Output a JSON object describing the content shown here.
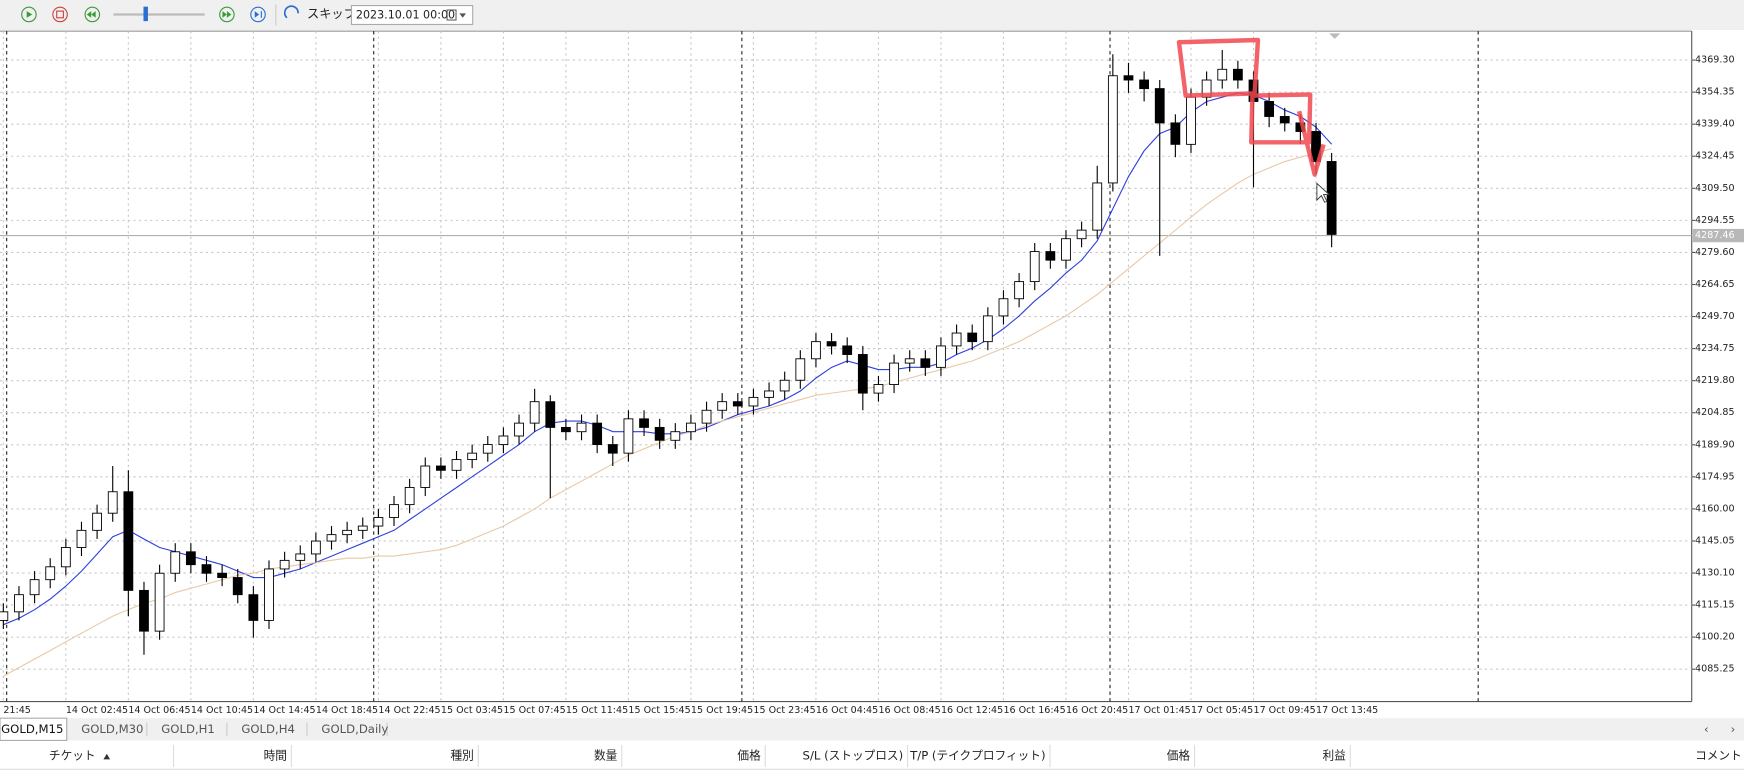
{
  "toolbar": {
    "skip": "スキップ",
    "date": "2023.10.01 00:00"
  },
  "chart_data": {
    "type": "candlestick",
    "categories": [
      "21:45",
      null,
      null,
      null,
      "14 Oct 02:45",
      null,
      null,
      null,
      "14 Oct 06:45",
      null,
      null,
      null,
      "14 Oct 10:45",
      null,
      null,
      null,
      "14 Oct 14:45",
      null,
      null,
      null,
      "14 Oct 18:45",
      null,
      null,
      null,
      "14 Oct 22:45",
      null,
      null,
      null,
      "15 Oct 03:45",
      null,
      null,
      null,
      "15 Oct 07:45",
      null,
      null,
      null,
      "15 Oct 11:45",
      null,
      null,
      null,
      "15 Oct 15:45",
      null,
      null,
      null,
      "15 Oct 19:45",
      null,
      null,
      null,
      "15 Oct 23:45",
      null,
      null,
      null,
      "16 Oct 04:45",
      null,
      null,
      null,
      "16 Oct 08:45",
      null,
      null,
      null,
      "16 Oct 12:45",
      null,
      null,
      null,
      "16 Oct 16:45",
      null,
      null,
      null,
      "16 Oct 20:45",
      null,
      null,
      null,
      "17 Oct 01:45",
      null,
      null,
      null,
      "17 Oct 05:45",
      null,
      null,
      null,
      "17 Oct 09:45",
      null,
      null,
      null,
      "17 Oct 13:45",
      null
    ],
    "open": [
      4108,
      4112,
      4120,
      4127,
      4133,
      4142,
      4150,
      4158,
      4168,
      4122,
      4103,
      4130,
      4140,
      4134,
      4130,
      4128,
      4120,
      4108,
      4132,
      4136,
      4139,
      4145,
      4148,
      4150,
      4152,
      4156,
      4162,
      4170,
      4180,
      4178,
      4183,
      4186,
      4190,
      4194,
      4200,
      4210,
      4198,
      4196,
      4200,
      4190,
      4186,
      4202,
      4198,
      4192,
      4196,
      4200,
      4206,
      4210,
      4208,
      4212,
      4215,
      4220,
      4230,
      4238,
      4236,
      4232,
      4214,
      4218,
      4228,
      4230,
      4226,
      4236,
      4242,
      4238,
      4250,
      4258,
      4266,
      4280,
      4276,
      4286,
      4290,
      4312,
      4362,
      4360,
      4356,
      4340,
      4330,
      4352,
      4360,
      4365,
      4360,
      4350,
      4343,
      4340,
      4336,
      4322
    ],
    "high": [
      4116,
      4124,
      4131,
      4137,
      4146,
      4154,
      4162,
      4180,
      4178,
      4126,
      4134,
      4144,
      4144,
      4138,
      4134,
      4132,
      4124,
      4136,
      4140,
      4143,
      4149,
      4152,
      4154,
      4156,
      4160,
      4166,
      4174,
      4184,
      4184,
      4187,
      4190,
      4194,
      4198,
      4204,
      4216,
      4213,
      4202,
      4204,
      4204,
      4194,
      4206,
      4206,
      4202,
      4200,
      4204,
      4210,
      4214,
      4214,
      4216,
      4219,
      4224,
      4234,
      4242,
      4242,
      4240,
      4236,
      4222,
      4232,
      4234,
      4234,
      4240,
      4246,
      4246,
      4254,
      4262,
      4270,
      4284,
      4284,
      4290,
      4294,
      4320,
      4372,
      4368,
      4364,
      4360,
      4344,
      4356,
      4364,
      4374,
      4369,
      4364,
      4354,
      4347,
      4344,
      4340,
      4326
    ],
    "low": [
      4104,
      4108,
      4116,
      4123,
      4129,
      4138,
      4146,
      4154,
      4110,
      4092,
      4099,
      4126,
      4130,
      4126,
      4124,
      4116,
      4100,
      4104,
      4128,
      4132,
      4135,
      4141,
      4144,
      4146,
      4148,
      4152,
      4158,
      4166,
      4174,
      4174,
      4179,
      4182,
      4186,
      4190,
      4196,
      4165,
      4192,
      4192,
      4186,
      4180,
      4182,
      4194,
      4188,
      4188,
      4192,
      4196,
      4202,
      4204,
      4204,
      4208,
      4211,
      4216,
      4226,
      4232,
      4228,
      4206,
      4210,
      4214,
      4224,
      4222,
      4222,
      4232,
      4234,
      4234,
      4246,
      4254,
      4262,
      4272,
      4272,
      4282,
      4286,
      4308,
      4354,
      4350,
      4278,
      4324,
      4326,
      4348,
      4356,
      4356,
      4310,
      4338,
      4336,
      4330,
      4316,
      4282
    ],
    "close": [
      4112,
      4120,
      4127,
      4133,
      4142,
      4150,
      4158,
      4168,
      4122,
      4103,
      4130,
      4140,
      4134,
      4130,
      4128,
      4120,
      4108,
      4132,
      4136,
      4139,
      4145,
      4148,
      4150,
      4152,
      4156,
      4162,
      4170,
      4180,
      4178,
      4183,
      4186,
      4190,
      4194,
      4200,
      4210,
      4198,
      4196,
      4200,
      4190,
      4186,
      4202,
      4198,
      4192,
      4196,
      4200,
      4206,
      4210,
      4208,
      4212,
      4215,
      4220,
      4230,
      4238,
      4236,
      4232,
      4214,
      4218,
      4228,
      4230,
      4226,
      4236,
      4242,
      4238,
      4250,
      4258,
      4266,
      4280,
      4276,
      4286,
      4290,
      4312,
      4362,
      4360,
      4356,
      4340,
      4330,
      4352,
      4360,
      4365,
      4360,
      4350,
      4343,
      4340,
      4336,
      4322,
      4288
    ],
    "up_color": "#ffffff",
    "down_color": "#000000",
    "moving_averages": [
      {
        "color": "#2f3fe0",
        "values": [
          4106,
          4109,
          4113,
          4118,
          4124,
          4131,
          4139,
          4147,
          4150,
          4146,
          4142,
          4140,
          4138,
          4136,
          4134,
          4131,
          4128,
          4128,
          4130,
          4132,
          4135,
          4138,
          4141,
          4144,
          4147,
          4150,
          4155,
          4160,
          4165,
          4170,
          4175,
          4180,
          4185,
          4190,
          4196,
          4200,
          4201,
          4201,
          4199,
          4196,
          4196,
          4196,
          4195,
          4195,
          4196,
          4198,
          4201,
          4204,
          4206,
          4208,
          4211,
          4215,
          4221,
          4226,
          4229,
          4227,
          4225,
          4225,
          4226,
          4226,
          4228,
          4232,
          4235,
          4239,
          4244,
          4250,
          4257,
          4263,
          4270,
          4276,
          4285,
          4300,
          4315,
          4327,
          4335,
          4338,
          4345,
          4350,
          4352,
          4354,
          4353,
          4350,
          4346,
          4343,
          4338,
          4330
        ]
      },
      {
        "color": "#e8c9a8",
        "values": [
          4082,
          4086,
          4090,
          4094,
          4098,
          4102,
          4106,
          4110,
          4113,
          4116,
          4118,
          4121,
          4123,
          4125,
          4127,
          4129,
          4130,
          4132,
          4133,
          4134,
          4135,
          4136,
          4137,
          4137,
          4138,
          4138,
          4139,
          4140,
          4141,
          4143,
          4146,
          4149,
          4152,
          4156,
          4160,
          4165,
          4169,
          4173,
          4177,
          4181,
          4185,
          4188,
          4191,
          4194,
          4196,
          4199,
          4201,
          4203,
          4205,
          4207,
          4209,
          4211,
          4213,
          4214,
          4215,
          4216,
          4217,
          4219,
          4221,
          4223,
          4225,
          4227,
          4229,
          4232,
          4235,
          4238,
          4242,
          4246,
          4250,
          4255,
          4260,
          4266,
          4272,
          4278,
          4284,
          4290,
          4296,
          4302,
          4307,
          4312,
          4316,
          4319,
          4322,
          4324,
          4326,
          4328
        ]
      }
    ],
    "current_price": 4287.46,
    "ylim": [
      4070.7,
      4382.8
    ],
    "yticks": [
      {
        "value": 4085.25,
        "label": "4085.25"
      },
      {
        "value": 4100.2,
        "label": "4100.20"
      },
      {
        "value": 4115.15,
        "label": "4115.15"
      },
      {
        "value": 4130.1,
        "label": "4130.10"
      },
      {
        "value": 4145.05,
        "label": "4145.05"
      },
      {
        "value": 4160,
        "label": "4160.00"
      },
      {
        "value": 4174.95,
        "label": "4174.95"
      },
      {
        "value": 4189.9,
        "label": "4189.90"
      },
      {
        "value": 4204.85,
        "label": "4204.85"
      },
      {
        "value": 4219.8,
        "label": "4219.80"
      },
      {
        "value": 4234.75,
        "label": "4234.75"
      },
      {
        "value": 4249.7,
        "label": "4249.70"
      },
      {
        "value": 4264.65,
        "label": "4264.65"
      },
      {
        "value": 4279.6,
        "label": "4279.60"
      },
      {
        "value": 4294.55,
        "label": "4294.55"
      },
      {
        "value": 4309.5,
        "label": "4309.50"
      },
      {
        "value": 4324.45,
        "label": "4324.45"
      },
      {
        "value": 4339.4,
        "label": "4339.40"
      },
      {
        "value": 4354.35,
        "label": "4354.35"
      },
      {
        "value": 4369.3,
        "label": "4369.30"
      }
    ],
    "grid": true
  },
  "tabs": [
    "GOLD,M15",
    "GOLD,M30",
    "GOLD,H1",
    "GOLD,H4",
    "GOLD,Daily"
  ],
  "table": {
    "headers": [
      "チケット",
      "時間",
      "種別",
      "数量",
      "価格",
      "S/L (ストップロス)",
      "T/P (テイクプロフィット)",
      "価格",
      "利益",
      "コメント"
    ]
  }
}
